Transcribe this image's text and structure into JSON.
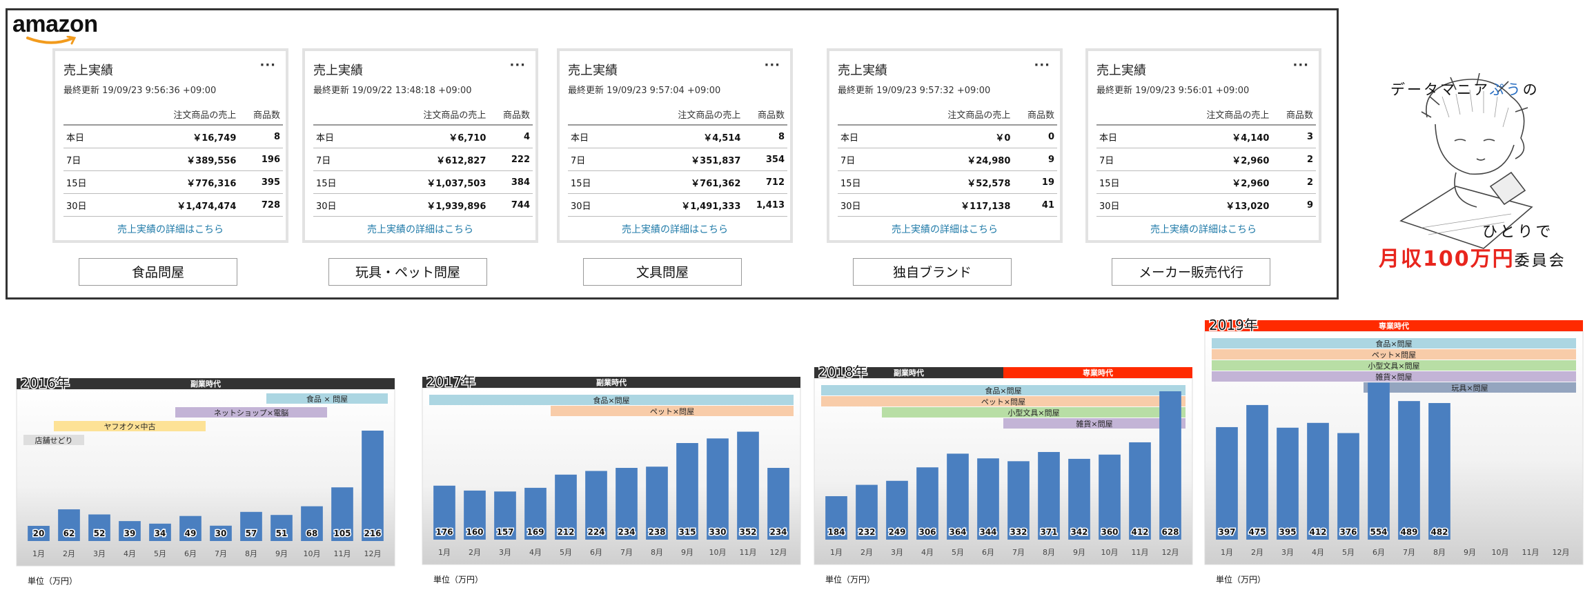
{
  "header": {
    "logo": "amazon",
    "card_title": "売上実績",
    "card_menu": "···",
    "col_sales": "注文商品の売上",
    "col_count": "商品数",
    "link": "売上実績の詳細はこちら",
    "row_labels": [
      "本日",
      "7日",
      "15日",
      "30日"
    ]
  },
  "cards": [
    {
      "updated": "最終更新 19/09/23 9:56:36 +09:00",
      "sales": [
        "￥16,749",
        "￥389,556",
        "￥776,316",
        "￥1,474,474"
      ],
      "counts": [
        "8",
        "196",
        "395",
        "728"
      ],
      "store": "食品問屋"
    },
    {
      "updated": "最終更新 19/09/22 13:48:18 +09:00",
      "sales": [
        "￥6,710",
        "￥612,827",
        "￥1,037,503",
        "￥1,939,896"
      ],
      "counts": [
        "4",
        "222",
        "384",
        "744"
      ],
      "store": "玩具・ペット問屋"
    },
    {
      "updated": "最終更新 19/09/23 9:57:04 +09:00",
      "sales": [
        "￥4,514",
        "￥351,837",
        "￥761,362",
        "￥1,491,333"
      ],
      "counts": [
        "8",
        "354",
        "712",
        "1,413"
      ],
      "store": "文具問屋"
    },
    {
      "updated": "最終更新 19/09/23 9:57:32 +09:00",
      "sales": [
        "￥0",
        "￥24,980",
        "￥52,578",
        "￥117,138"
      ],
      "counts": [
        "0",
        "9",
        "19",
        "41"
      ],
      "store": "独自ブランド"
    },
    {
      "updated": "最終更新 19/09/23 9:56:01 +09:00",
      "sales": [
        "￥4,140",
        "￥2,960",
        "￥2,960",
        "￥13,020"
      ],
      "counts": [
        "3",
        "2",
        "2",
        "9"
      ],
      "store": "メーカー販売代行"
    }
  ],
  "mascot": {
    "line1_a": "データマニア",
    "line1_b": "ぷう",
    "line1_c": "の",
    "line2": "ひとりで",
    "line3_a": "月収100万円",
    "line3_b": "委員会"
  },
  "colors": {
    "bar": "#4a7fc0",
    "dark_band": "#333333",
    "red_band": "#ff2a00",
    "light_blue": "#a8d4e0",
    "orange": "#f8c9a4",
    "green": "#b4dca0",
    "purple": "#c0b0d4",
    "yellow": "#fde090",
    "gray": "#dcdcdc"
  },
  "chart_data": [
    {
      "type": "bar",
      "title": "2016年",
      "categories": [
        "1月",
        "2月",
        "3月",
        "4月",
        "5月",
        "6月",
        "7月",
        "8月",
        "9月",
        "10月",
        "11月",
        "12月"
      ],
      "values": [
        20,
        62,
        52,
        39,
        34,
        49,
        30,
        57,
        51,
        68,
        105,
        216
      ],
      "unit_label": "単位（万円）",
      "ylim": [
        0,
        660
      ],
      "periods": [
        {
          "label": "副業時代",
          "from": 1,
          "to": 12,
          "color": "#333333"
        }
      ],
      "annotations": [
        {
          "label": "店舗せどり",
          "from": 1,
          "to": 2,
          "color": "#dcdcdc"
        },
        {
          "label": "ヤフオク×中古",
          "from": 2,
          "to": 6,
          "color": "#fde090"
        },
        {
          "label": "ネットショップ×電脳",
          "from": 6,
          "to": 10,
          "color": "#c0b0d4"
        },
        {
          "label": "食品 × 問屋",
          "from": 9,
          "to": 12,
          "color": "#a8d4e0"
        }
      ]
    },
    {
      "type": "bar",
      "title": "2017年",
      "categories": [
        "1月",
        "2月",
        "3月",
        "4月",
        "5月",
        "6月",
        "7月",
        "8月",
        "9月",
        "10月",
        "11月",
        "12月"
      ],
      "values": [
        176,
        160,
        157,
        169,
        212,
        224,
        234,
        238,
        315,
        330,
        352,
        234
      ],
      "unit_label": "単位（万円）",
      "ylim": [
        0,
        660
      ],
      "periods": [
        {
          "label": "副業時代",
          "from": 1,
          "to": 12,
          "color": "#333333"
        }
      ],
      "annotations": [
        {
          "label": "食品×問屋",
          "from": 1,
          "to": 12,
          "color": "#a8d4e0"
        },
        {
          "label": "ペット×問屋",
          "from": 5,
          "to": 12,
          "color": "#f8c9a4"
        }
      ]
    },
    {
      "type": "bar",
      "title": "2018年",
      "categories": [
        "1月",
        "2月",
        "3月",
        "4月",
        "5月",
        "6月",
        "7月",
        "8月",
        "9月",
        "10月",
        "11月",
        "12月"
      ],
      "values": [
        184,
        232,
        249,
        306,
        364,
        344,
        332,
        371,
        342,
        360,
        412,
        628
      ],
      "unit_label": "単位（万円）",
      "ylim": [
        0,
        660
      ],
      "periods": [
        {
          "label": "副業時代",
          "from": 1,
          "to": 6,
          "color": "#333333"
        },
        {
          "label": "専業時代",
          "from": 7,
          "to": 12,
          "color": "#ff2a00"
        }
      ],
      "annotations": [
        {
          "label": "食品×問屋",
          "from": 1,
          "to": 12,
          "color": "#a8d4e0"
        },
        {
          "label": "ペット×問屋",
          "from": 1,
          "to": 12,
          "color": "#f8c9a4"
        },
        {
          "label": "小型文具×問屋",
          "from": 3,
          "to": 12,
          "color": "#b4dca0"
        },
        {
          "label": "雑貨×問屋",
          "from": 7,
          "to": 12,
          "color": "#c0b0d4"
        }
      ]
    },
    {
      "type": "bar",
      "title": "2019年",
      "categories": [
        "1月",
        "2月",
        "3月",
        "4月",
        "5月",
        "6月",
        "7月",
        "8月",
        "9月",
        "10月",
        "11月",
        "12月"
      ],
      "values": [
        397,
        475,
        395,
        412,
        376,
        554,
        489,
        482,
        null,
        null,
        null,
        null
      ],
      "unit_label": "単位（万円）",
      "ylim": [
        0,
        660
      ],
      "periods": [
        {
          "label": "専業時代",
          "from": 1,
          "to": 12,
          "color": "#ff2a00"
        }
      ],
      "annotations": [
        {
          "label": "食品×問屋",
          "from": 1,
          "to": 12,
          "color": "#a8d4e0"
        },
        {
          "label": "ペット×問屋",
          "from": 1,
          "to": 12,
          "color": "#f8c9a4"
        },
        {
          "label": "小型文具×問屋",
          "from": 1,
          "to": 12,
          "color": "#b4dca0"
        },
        {
          "label": "雑貨×問屋",
          "from": 1,
          "to": 12,
          "color": "#c0b0d4"
        },
        {
          "label": "玩具×問屋",
          "from": 6,
          "to": 12,
          "color": "#8ea0bc"
        }
      ]
    }
  ]
}
